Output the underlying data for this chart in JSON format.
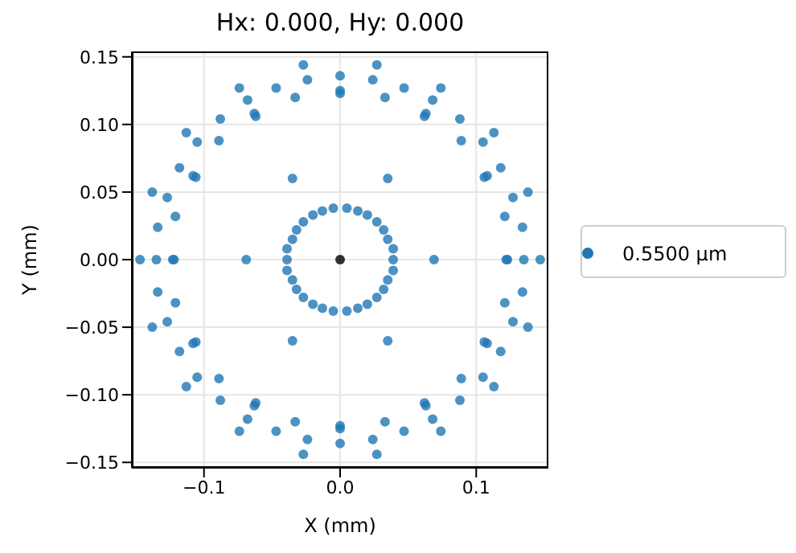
{
  "chart_data": {
    "type": "scatter",
    "title": "Hx: 0.000, Hy: 0.000",
    "xlabel": "X (mm)",
    "ylabel": "Y (mm)",
    "xlim": [
      -0.153,
      0.153
    ],
    "ylim": [
      -0.154,
      0.154
    ],
    "xticks": [
      {
        "value": -0.1,
        "label": "−0.1"
      },
      {
        "value": 0,
        "label": "0.0"
      },
      {
        "value": 0.1,
        "label": "0.1"
      }
    ],
    "yticks": [
      {
        "value": -0.15,
        "label": "−0.15"
      },
      {
        "value": -0.1,
        "label": "−0.10"
      },
      {
        "value": -0.05,
        "label": "−0.05"
      },
      {
        "value": 0,
        "label": "0.00"
      },
      {
        "value": 0.05,
        "label": "0.05"
      },
      {
        "value": 0.1,
        "label": "0.10"
      },
      {
        "value": 0.15,
        "label": "0.15"
      }
    ],
    "grid": true,
    "legend": "right",
    "marker": "circle",
    "series": [
      {
        "name": "0.5500 µm",
        "color": "#1f77b4",
        "x": [
          0.027,
          0.024,
          0.033,
          0.047,
          0.074,
          0.068,
          0.063,
          0.062,
          0.088,
          0.113,
          0.089,
          0.105,
          0.118,
          0.108,
          0.106,
          0.035,
          0.138,
          0.127,
          0.121,
          0.134,
          0.005,
          0.013,
          0.02,
          0.027,
          0.032,
          0.035,
          0.039,
          -0.027,
          -0.024,
          -0.033,
          -0.047,
          -0.074,
          -0.068,
          -0.063,
          -0.062,
          -0.088,
          -0.113,
          -0.089,
          -0.105,
          -0.118,
          -0.108,
          -0.106,
          -0.035,
          -0.138,
          -0.127,
          -0.121,
          -0.134,
          -0.005,
          -0.013,
          -0.02,
          -0.027,
          -0.032,
          -0.035,
          -0.039,
          -0.027,
          -0.024,
          -0.033,
          -0.047,
          -0.074,
          -0.068,
          -0.063,
          -0.062,
          -0.088,
          -0.113,
          -0.089,
          -0.105,
          -0.118,
          -0.108,
          -0.106,
          -0.035,
          -0.138,
          -0.127,
          -0.121,
          -0.134,
          -0.005,
          -0.013,
          -0.02,
          -0.027,
          -0.032,
          -0.035,
          -0.039,
          0.027,
          0.024,
          0.033,
          0.047,
          0.074,
          0.068,
          0.063,
          0.062,
          0.088,
          0.113,
          0.089,
          0.105,
          0.118,
          0.108,
          0.106,
          0.035,
          0.138,
          0.127,
          0.121,
          0.134,
          0.005,
          0.013,
          0.02,
          0.027,
          0.032,
          0.035,
          0.039,
          0,
          0,
          0,
          0,
          0,
          0,
          0.147,
          0.135,
          0.123,
          0.122,
          0.069,
          0.039,
          -0.147,
          -0.135,
          -0.123,
          -0.122,
          -0.069,
          -0.039
        ],
        "values": [
          0.144,
          0.133,
          0.12,
          0.127,
          0.127,
          0.118,
          0.108,
          0.106,
          0.104,
          0.094,
          0.088,
          0.087,
          0.068,
          0.062,
          0.061,
          0.06,
          0.05,
          0.046,
          0.032,
          0.024,
          0.038,
          0.036,
          0.033,
          0.028,
          0.022,
          0.015,
          0.008,
          0.144,
          0.133,
          0.12,
          0.127,
          0.127,
          0.118,
          0.108,
          0.106,
          0.104,
          0.094,
          0.088,
          0.087,
          0.068,
          0.062,
          0.061,
          0.06,
          0.05,
          0.046,
          0.032,
          0.024,
          0.038,
          0.036,
          0.033,
          0.028,
          0.022,
          0.015,
          0.008,
          -0.144,
          -0.133,
          -0.12,
          -0.127,
          -0.127,
          -0.118,
          -0.108,
          -0.106,
          -0.104,
          -0.094,
          -0.088,
          -0.087,
          -0.068,
          -0.062,
          -0.061,
          -0.06,
          -0.05,
          -0.046,
          -0.032,
          -0.024,
          -0.038,
          -0.036,
          -0.033,
          -0.028,
          -0.022,
          -0.015,
          -0.008,
          -0.144,
          -0.133,
          -0.12,
          -0.127,
          -0.127,
          -0.118,
          -0.108,
          -0.106,
          -0.104,
          -0.094,
          -0.088,
          -0.087,
          -0.068,
          -0.062,
          -0.061,
          -0.06,
          -0.05,
          -0.046,
          -0.032,
          -0.024,
          -0.038,
          -0.036,
          -0.033,
          -0.028,
          -0.022,
          -0.015,
          -0.008,
          0.136,
          0.125,
          0.123,
          -0.136,
          -0.125,
          -0.123,
          0,
          0,
          0,
          0,
          0,
          0,
          0,
          0,
          0,
          0,
          0,
          0
        ]
      },
      {
        "color": "#000000",
        "x": [
          0
        ],
        "values": [
          0
        ]
      }
    ]
  }
}
